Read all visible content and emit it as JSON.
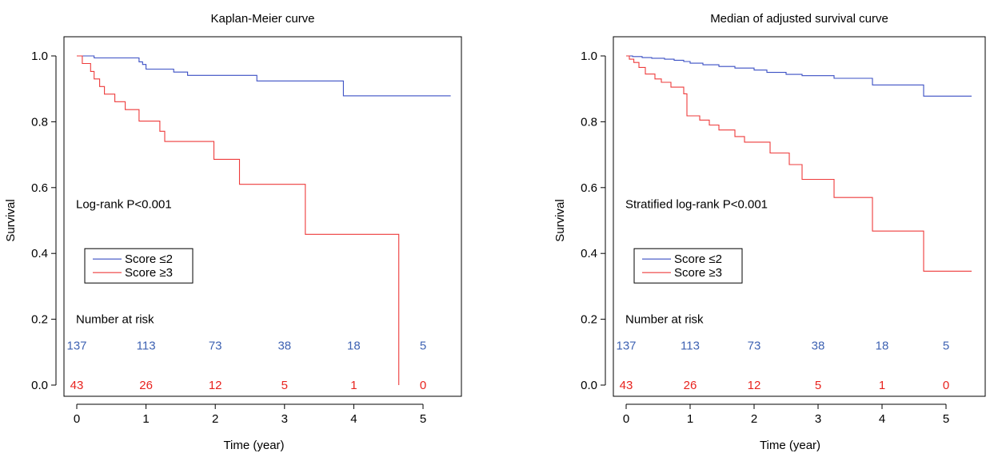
{
  "colors": {
    "blue": "#3a4fc4",
    "red": "#ee3b3b",
    "riskBlue": "#3f63b3",
    "riskRed": "#e8231e",
    "axis": "#000000"
  },
  "chart_data": [
    {
      "type": "line",
      "title": "Kaplan-Meier curve",
      "xlabel": "Time (year)",
      "ylabel": "Survival",
      "xlim": [
        0,
        5.45
      ],
      "ylim": [
        0,
        1.0
      ],
      "xticks": [
        "0",
        "1",
        "2",
        "3",
        "4",
        "5"
      ],
      "yticks": [
        "0.0",
        "0.2",
        "0.4",
        "0.6",
        "0.8",
        "1.0"
      ],
      "grid": false,
      "legend_position": "middle-left",
      "annotation": "Log-rank P<0.001",
      "series": [
        {
          "name": "Score ≤2",
          "color": "blue",
          "step": true,
          "x": [
            0,
            0.25,
            0.4,
            0.8,
            0.9,
            0.95,
            1.0,
            1.4,
            1.6,
            1.8,
            2.6,
            3.85,
            5.4
          ],
          "y": [
            1.0,
            0.994,
            0.994,
            0.994,
            0.982,
            0.974,
            0.96,
            0.951,
            0.941,
            0.941,
            0.924,
            0.879,
            0.879
          ]
        },
        {
          "name": "Score ≥3",
          "color": "red",
          "step": true,
          "x": [
            0,
            0.08,
            0.2,
            0.25,
            0.33,
            0.4,
            0.55,
            0.7,
            0.9,
            1.2,
            1.27,
            1.98,
            2.35,
            3.3,
            4.65,
            4.65
          ],
          "y": [
            1.0,
            0.977,
            0.953,
            0.93,
            0.907,
            0.884,
            0.861,
            0.837,
            0.802,
            0.771,
            0.74,
            0.686,
            0.61,
            0.458,
            0.458,
            0.0
          ]
        }
      ],
      "risk_table": {
        "title": "Number at risk",
        "times": [
          0,
          1,
          2,
          3,
          4,
          5
        ],
        "rows": [
          {
            "color": "blue",
            "values": [
              "137",
              "113",
              "73",
              "38",
              "18",
              "5"
            ]
          },
          {
            "color": "red",
            "values": [
              "43",
              "26",
              "12",
              "5",
              "1",
              "0"
            ]
          }
        ]
      }
    },
    {
      "type": "line",
      "title": "Median of adjusted survival curve",
      "xlabel": "Time (year)",
      "ylabel": "Survival",
      "xlim": [
        0,
        5.45
      ],
      "ylim": [
        0,
        1.0
      ],
      "xticks": [
        "0",
        "1",
        "2",
        "3",
        "4",
        "5"
      ],
      "yticks": [
        "0.0",
        "0.2",
        "0.4",
        "0.6",
        "0.8",
        "1.0"
      ],
      "grid": false,
      "legend_position": "middle-left",
      "annotation": "Stratified log-rank P<0.001",
      "series": [
        {
          "name": "Score ≤2",
          "color": "blue",
          "step": true,
          "x": [
            0,
            0.1,
            0.25,
            0.4,
            0.6,
            0.75,
            0.9,
            1.0,
            1.2,
            1.45,
            1.7,
            2.0,
            2.2,
            2.5,
            2.75,
            3.25,
            3.85,
            4.65,
            5.4
          ],
          "y": [
            1.0,
            0.998,
            0.995,
            0.993,
            0.99,
            0.987,
            0.983,
            0.978,
            0.973,
            0.968,
            0.963,
            0.957,
            0.95,
            0.944,
            0.94,
            0.932,
            0.912,
            0.878,
            0.878
          ]
        },
        {
          "name": "Score ≥3",
          "color": "red",
          "step": true,
          "x": [
            0,
            0.05,
            0.12,
            0.2,
            0.3,
            0.45,
            0.55,
            0.7,
            0.9,
            0.95,
            1.15,
            1.3,
            1.45,
            1.7,
            1.85,
            2.25,
            2.55,
            2.75,
            3.25,
            3.85,
            4.65,
            5.4
          ],
          "y": [
            1.0,
            0.99,
            0.98,
            0.965,
            0.945,
            0.93,
            0.92,
            0.905,
            0.885,
            0.818,
            0.805,
            0.79,
            0.775,
            0.755,
            0.738,
            0.705,
            0.67,
            0.625,
            0.57,
            0.468,
            0.346,
            0.346
          ]
        }
      ],
      "risk_table": {
        "title": "Number at risk",
        "times": [
          0,
          1,
          2,
          3,
          4,
          5
        ],
        "rows": [
          {
            "color": "blue",
            "values": [
              "137",
              "113",
              "73",
              "38",
              "18",
              "5"
            ]
          },
          {
            "color": "red",
            "values": [
              "43",
              "26",
              "12",
              "5",
              "1",
              "0"
            ]
          }
        ]
      }
    }
  ]
}
